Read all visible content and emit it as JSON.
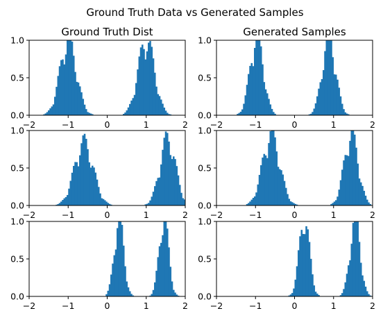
{
  "figure": {
    "suptitle": "Ground Truth Data vs Generated Samples"
  },
  "chart_data": [
    {
      "id": "gt1",
      "type": "bar",
      "title": "Ground Truth Dist",
      "xlim": [
        -2,
        2
      ],
      "ylim": [
        0,
        1
      ],
      "xticks": [
        "−2",
        "−1",
        "0",
        "1",
        "2"
      ],
      "yticks": [
        "0.0",
        "0.5",
        "1.0"
      ],
      "bin_width": 0.04,
      "modes": [
        {
          "center": -1.0,
          "sd": 0.21,
          "peak": 0.95
        },
        {
          "center": 1.0,
          "sd": 0.21,
          "peak": 0.95
        }
      ]
    },
    {
      "id": "gen1",
      "type": "bar",
      "title": "Generated Samples",
      "xlim": [
        -2,
        2
      ],
      "ylim": [
        0,
        1
      ],
      "xticks": [
        "−2",
        "−1",
        "0",
        "1",
        "2"
      ],
      "yticks": [
        "0.0",
        "0.5",
        "1.0"
      ],
      "bin_width": 0.04,
      "modes": [
        {
          "center": -0.97,
          "sd": 0.17,
          "peak": 1.0
        },
        {
          "center": 0.88,
          "sd": 0.17,
          "peak": 1.0
        }
      ]
    },
    {
      "id": "gt2",
      "type": "bar",
      "title": "",
      "xlim": [
        -2,
        2
      ],
      "ylim": [
        0,
        1
      ],
      "xticks": [
        "−2",
        "−1",
        "0",
        "1",
        "2"
      ],
      "yticks": [
        "0.0",
        "0.5",
        "1.0"
      ],
      "bin_width": 0.04,
      "modes": [
        {
          "center": -0.6,
          "sd": 0.24,
          "peak": 0.8
        },
        {
          "center": 1.55,
          "sd": 0.2,
          "peak": 0.85
        }
      ]
    },
    {
      "id": "gen2",
      "type": "bar",
      "title": "",
      "xlim": [
        -2,
        2
      ],
      "ylim": [
        0,
        1
      ],
      "xticks": [
        "−2",
        "−1",
        "0",
        "1",
        "2"
      ],
      "yticks": [
        "0.0",
        "0.5",
        "1.0"
      ],
      "bin_width": 0.04,
      "modes": [
        {
          "center": -0.6,
          "sd": 0.22,
          "peak": 0.9
        },
        {
          "center": 1.45,
          "sd": 0.18,
          "peak": 0.9
        }
      ]
    },
    {
      "id": "gt3",
      "type": "bar",
      "title": "",
      "xlim": [
        -2,
        2
      ],
      "ylim": [
        0,
        1
      ],
      "xticks": [
        "−2",
        "−1",
        "0",
        "1",
        "2"
      ],
      "yticks": [
        "0.0",
        "0.5",
        "1.0"
      ],
      "bin_width": 0.04,
      "modes": [
        {
          "center": 0.3,
          "sd": 0.12,
          "peak": 1.0
        },
        {
          "center": 1.45,
          "sd": 0.12,
          "peak": 1.0
        }
      ]
    },
    {
      "id": "gen3",
      "type": "bar",
      "title": "",
      "xlim": [
        -2,
        2
      ],
      "ylim": [
        0,
        1
      ],
      "xticks": [
        "−2",
        "−1",
        "0",
        "1",
        "2"
      ],
      "yticks": [
        "0.0",
        "0.5",
        "1.0"
      ],
      "bin_width": 0.04,
      "modes": [
        {
          "center": 0.25,
          "sd": 0.13,
          "peak": 1.0
        },
        {
          "center": 1.55,
          "sd": 0.13,
          "peak": 1.0
        }
      ]
    }
  ]
}
